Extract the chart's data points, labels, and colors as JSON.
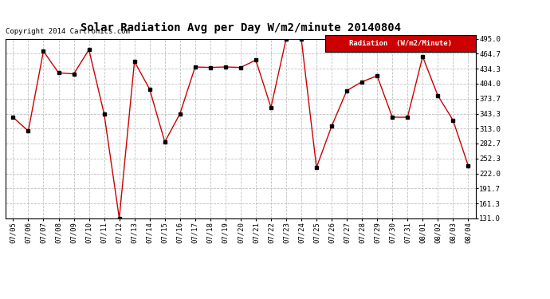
{
  "title": "Solar Radiation Avg per Day W/m2/minute 20140804",
  "copyright_text": "Copyright 2014 Cartronics.com",
  "legend_label": "Radiation  (W/m2/Minute)",
  "dates": [
    "07/05",
    "07/06",
    "07/07",
    "07/08",
    "07/09",
    "07/10",
    "07/11",
    "07/12",
    "07/13",
    "07/14",
    "07/15",
    "07/16",
    "07/17",
    "07/18",
    "07/19",
    "07/20",
    "07/21",
    "07/22",
    "07/23",
    "07/24",
    "07/25",
    "07/26",
    "07/27",
    "07/28",
    "07/29",
    "07/30",
    "07/31",
    "08/01",
    "08/02",
    "08/03",
    "08/04"
  ],
  "values": [
    336,
    308,
    470,
    426,
    424,
    473,
    343,
    131,
    449,
    393,
    286,
    343,
    438,
    437,
    438,
    437,
    452,
    356,
    495,
    495,
    234,
    318,
    390,
    408,
    420,
    336,
    336,
    459,
    380,
    330,
    238
  ],
  "line_color": "#cc0000",
  "marker_color": "#000000",
  "bg_color": "#ffffff",
  "grid_color": "#c0c0c0",
  "ylim_min": 131.0,
  "ylim_max": 495.0,
  "yticks": [
    131.0,
    161.3,
    191.7,
    222.0,
    252.3,
    282.7,
    313.0,
    343.3,
    373.7,
    404.0,
    434.3,
    464.7,
    495.0
  ],
  "title_fontsize": 10,
  "copyright_fontsize": 6.5,
  "legend_fontsize": 6.5,
  "tick_fontsize": 6.5
}
